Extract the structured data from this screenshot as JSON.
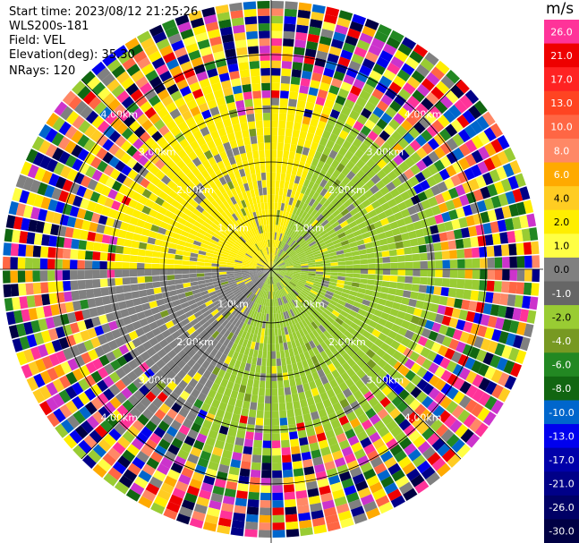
{
  "info": {
    "start_time": "Start time: 2023/08/12 21:25:26",
    "site": "WLS200s-181",
    "field": "Field: VEL",
    "elevation": "Elevation(deg): 35.30",
    "nrays": "NRays: 120"
  },
  "colorbar": {
    "unit": "m/s",
    "labels": [
      "26.0",
      "21.0",
      "17.0",
      "13.0",
      "10.0",
      "8.0",
      "6.0",
      "4.0",
      "2.0",
      "1.0",
      "0.0",
      "-1.0",
      "-2.0",
      "-4.0",
      "-6.0",
      "-8.0",
      "-10.0",
      "-13.0",
      "-17.0",
      "-21.0",
      "-26.0",
      "-30.0"
    ],
    "colors": [
      "#ff3399",
      "#ee0000",
      "#ff2222",
      "#ff4422",
      "#ff6644",
      "#ff8866",
      "#ffaa00",
      "#ffcc22",
      "#ffee00",
      "#ffff44",
      "#808080",
      "#666666",
      "#99cc33",
      "#779922",
      "#228822",
      "#116611",
      "#0066cc",
      "#0000ee",
      "#0000aa",
      "#000088",
      "#000066",
      "#000044"
    ]
  },
  "chart_data": {
    "type": "ppi_radar",
    "nrays": 120,
    "elevation_deg": 35.3,
    "field": "VEL",
    "units": "m/s",
    "range_rings_km": [
      1.0,
      2.0,
      3.0,
      4.0
    ],
    "ring_label_text": [
      "1.0km",
      "2.00km",
      "3.00km",
      "4.00km"
    ],
    "inner_zone_colors_by_sector": {
      "north_west": "#ffee00",
      "north_east": "#99cc33",
      "south_west": "#808080",
      "south_east": "#99cc33"
    },
    "outer_zone": "noise"
  }
}
